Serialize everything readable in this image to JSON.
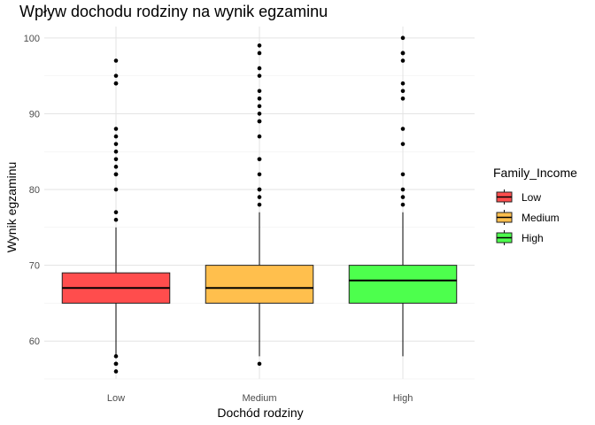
{
  "chart_data": {
    "type": "boxplot",
    "title": "Wpływ dochodu rodziny na wynik egzaminu",
    "xlabel": "Dochód rodziny",
    "ylabel": "Wynik egzaminu",
    "categories": [
      "Low",
      "Medium",
      "High"
    ],
    "ylim": [
      55,
      101.5
    ],
    "yticks": [
      60,
      70,
      80,
      90,
      100
    ],
    "grid": true,
    "legend": {
      "title": "Family_Income",
      "placement": "right",
      "entries": [
        "Low",
        "Medium",
        "High"
      ]
    },
    "colors": {
      "Low": "#ff4d4d",
      "Medium": "#ffbf4d",
      "High": "#4dff4d"
    },
    "boxes": [
      {
        "category": "Low",
        "min": 58,
        "q1": 65,
        "median": 67,
        "q3": 69,
        "max": 75,
        "outliers": [
          56,
          57,
          57,
          58,
          76,
          77,
          80,
          82,
          82,
          83,
          84,
          85,
          86,
          87,
          88,
          94,
          94,
          95,
          97
        ]
      },
      {
        "category": "Medium",
        "min": 58,
        "q1": 65,
        "median": 67,
        "q3": 70,
        "max": 77,
        "outliers": [
          57,
          78,
          79,
          80,
          80,
          82,
          84,
          84,
          87,
          89,
          89,
          90,
          91,
          92,
          93,
          95,
          96,
          98,
          99
        ]
      },
      {
        "category": "High",
        "min": 58,
        "q1": 65,
        "median": 68,
        "q3": 70,
        "max": 77,
        "outliers": [
          78,
          79,
          80,
          82,
          86,
          88,
          92,
          93,
          94,
          97,
          98,
          98,
          100
        ]
      }
    ]
  }
}
